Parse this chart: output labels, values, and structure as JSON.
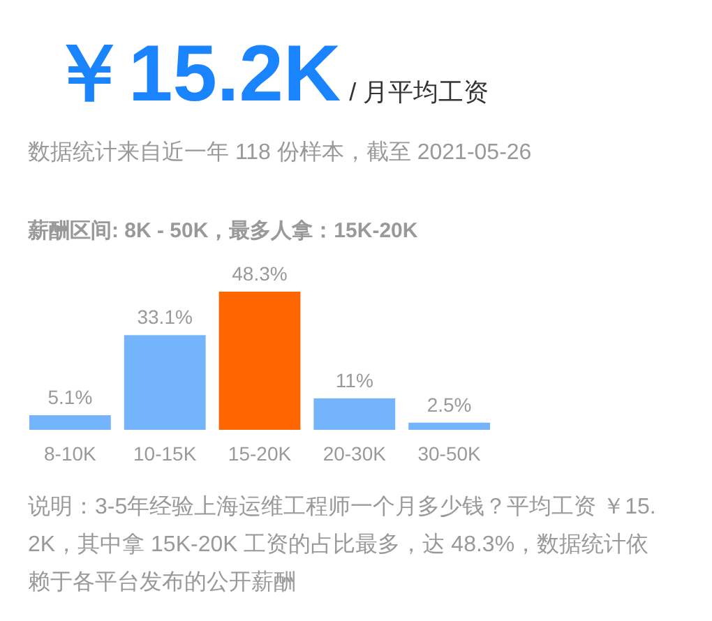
{
  "chart_data": {
    "type": "bar",
    "title": "￥15.2K",
    "subtitle": "/ 月平均工资",
    "annotations": [
      "数据统计来自近一年 118 份样本，截至 2021-05-26",
      "薪酬区间: 8K - 50K，最多人拿：15K-20K",
      "说明：3-5年经验上海运维工程师一个月多少钱？平均工资 ￥15.2K，其中拿 15K-20K 工资的占比最多，达 48.3%，数据统计依赖于各平台发布的公开薪酬"
    ],
    "categories": [
      "8-10K",
      "10-15K",
      "15-20K",
      "20-30K",
      "30-50K"
    ],
    "values": [
      5.1,
      33.1,
      48.3,
      11,
      2.5
    ],
    "colors": [
      "#74b4fc",
      "#74b4fc",
      "#ff6600",
      "#74b4fc",
      "#74b4fc"
    ],
    "value_labels": [
      "5.1%",
      "33.1%",
      "48.3%",
      "11%",
      "2.5%"
    ]
  }
}
